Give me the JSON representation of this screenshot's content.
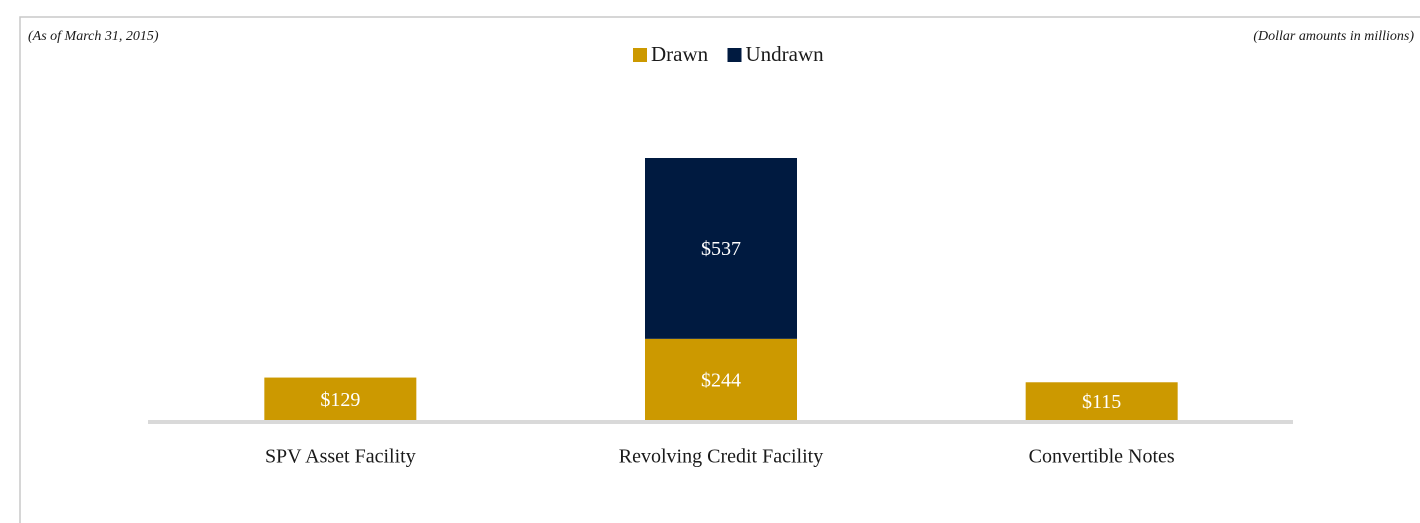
{
  "chart_data": {
    "type": "bar",
    "stacked": true,
    "annotations": [
      "(As of March 31, 2015)",
      "(Dollar amounts in millions)"
    ],
    "categories": [
      "SPV Asset Facility",
      "Revolving Credit Facility",
      "Convertible Notes"
    ],
    "series": [
      {
        "name": "Drawn",
        "color": "#cc9900",
        "values": [
          129,
          244,
          115
        ],
        "value_labels": [
          "$129",
          "$244",
          "$115"
        ]
      },
      {
        "name": "Undrawn",
        "color": "#001a40",
        "values": [
          null,
          537,
          null
        ],
        "value_labels": [
          null,
          "$537",
          null
        ]
      }
    ],
    "legend": "top"
  }
}
